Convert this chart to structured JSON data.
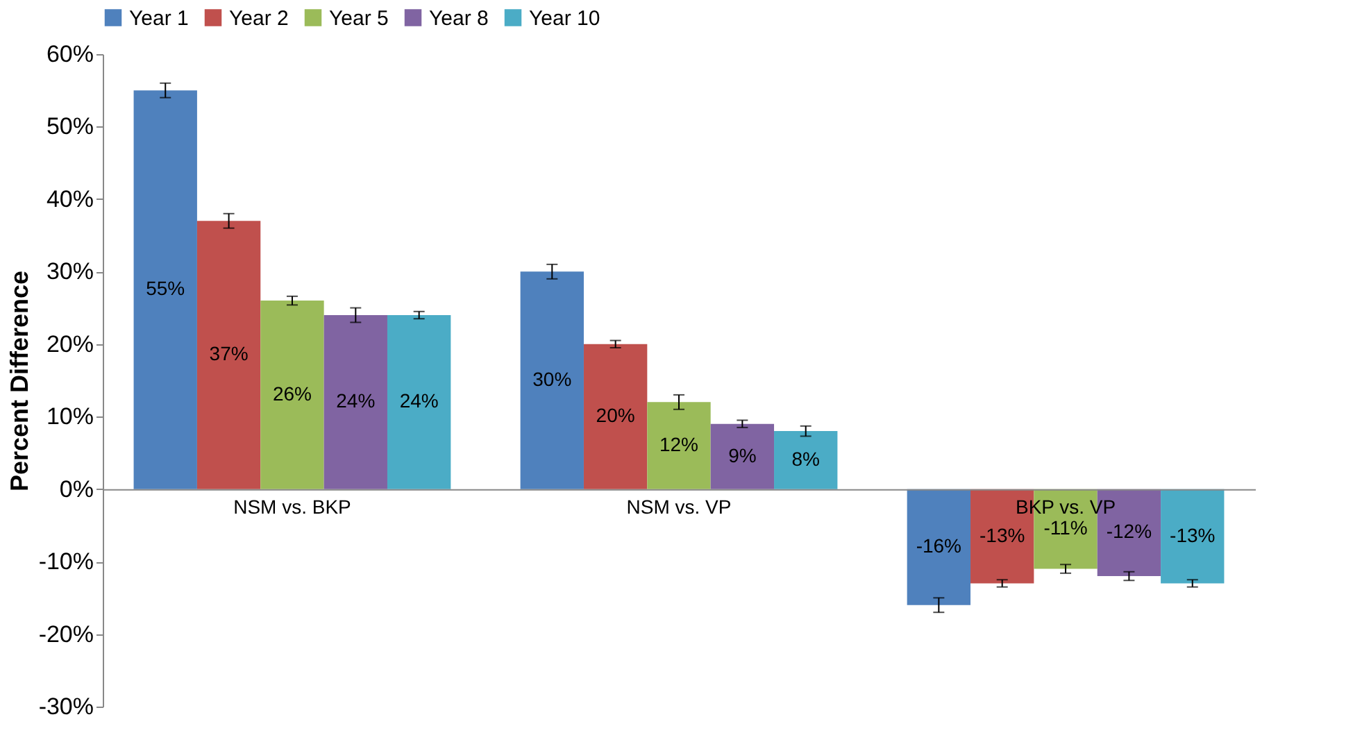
{
  "chart_data": {
    "type": "bar",
    "ylabel": "Percent Difference",
    "categories": [
      "NSM vs. BKP",
      "NSM vs. VP",
      "BKP vs. VP"
    ],
    "series": [
      {
        "name": "Year 1",
        "color": "#4f81bd",
        "values": [
          55,
          30,
          -16
        ],
        "errors": [
          1,
          1,
          1
        ],
        "value_labels": [
          "55%",
          "30%",
          "-16%"
        ]
      },
      {
        "name": "Year 2",
        "color": "#c0504d",
        "values": [
          37,
          20,
          -13
        ],
        "errors": [
          1,
          0.5,
          0.5
        ],
        "value_labels": [
          "37%",
          "20%",
          "-13%"
        ]
      },
      {
        "name": "Year 5",
        "color": "#9bbb59",
        "values": [
          26,
          12,
          -11
        ],
        "errors": [
          0.6,
          1,
          0.6
        ],
        "value_labels": [
          "26%",
          "12%",
          "-11%"
        ]
      },
      {
        "name": "Year 8",
        "color": "#8064a2",
        "values": [
          24,
          9,
          -12
        ],
        "errors": [
          1,
          0.5,
          0.6
        ],
        "value_labels": [
          "24%",
          "9%",
          "-12%"
        ]
      },
      {
        "name": "Year 10",
        "color": "#4bacc6",
        "values": [
          24,
          8,
          -13
        ],
        "errors": [
          0.5,
          0.7,
          0.5
        ],
        "value_labels": [
          "24%",
          "8%",
          "-13%"
        ]
      }
    ],
    "ylim": [
      -30,
      60
    ],
    "yticks": [
      {
        "value": -30,
        "label": "-30%"
      },
      {
        "value": -20,
        "label": "-20%"
      },
      {
        "value": -10,
        "label": "-10%"
      },
      {
        "value": 0,
        "label": "0%"
      },
      {
        "value": 10,
        "label": "10%"
      },
      {
        "value": 20,
        "label": "20%"
      },
      {
        "value": 30,
        "label": "30%"
      },
      {
        "value": 40,
        "label": "40%"
      },
      {
        "value": 50,
        "label": "50%"
      },
      {
        "value": 60,
        "label": "60%"
      }
    ],
    "grid": false,
    "legend": "top"
  }
}
